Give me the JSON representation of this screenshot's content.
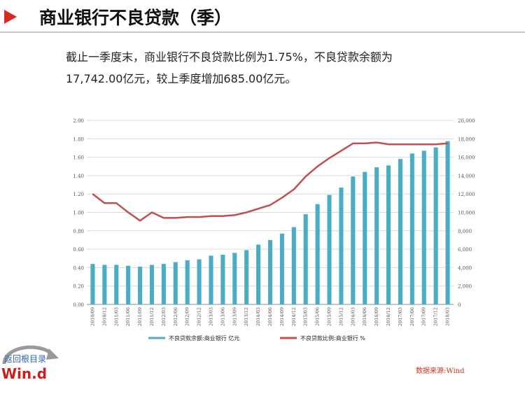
{
  "header": {
    "title": "商业银行不良贷款（季）"
  },
  "summary": {
    "line1": "截止一季度末，商业银行不良贷款比例为1.75%，不良贷款余额为",
    "line2": "17,742.00亿元，较上季度增加685.00亿元。"
  },
  "source": "数据来源:Wind",
  "nav": {
    "back_label": "返回根目录",
    "logo_text": "Win.d"
  },
  "colors": {
    "accent": "#d42a1f",
    "bar": "#4bacc6",
    "line": "#c0504d"
  },
  "chart_data": {
    "type": "bar",
    "categories": [
      "2010/09",
      "2010/12",
      "2011/03",
      "2011/06",
      "2011/09",
      "2011/12",
      "2012/03",
      "2012/06",
      "2012/09",
      "2012/12",
      "2013/03",
      "2013/06",
      "2013/09",
      "2013/12",
      "2014/03",
      "2014/06",
      "2014/09",
      "2014/12",
      "2015/03",
      "2015/06",
      "2015/09",
      "2015/12",
      "2016/03",
      "2016/06",
      "2016/09",
      "2016/12",
      "2017/03",
      "2017/06",
      "2017/09",
      "2017/12",
      "2018/03"
    ],
    "series": [
      {
        "name": "不良贷款余额:商业银行 亿元",
        "type": "bar",
        "axis": "right",
        "values": [
          4400,
          4300,
          4300,
          4200,
          4100,
          4300,
          4400,
          4600,
          4800,
          4900,
          5300,
          5400,
          5600,
          5900,
          6500,
          7000,
          7700,
          8400,
          9800,
          10900,
          11900,
          12700,
          13900,
          14400,
          14900,
          15100,
          15800,
          16400,
          16700,
          17057,
          17742
        ]
      },
      {
        "name": "不良贷款比例:商业银行 %",
        "type": "line",
        "axis": "left",
        "values": [
          1.2,
          1.1,
          1.1,
          1.0,
          0.91,
          1.0,
          0.94,
          0.94,
          0.95,
          0.95,
          0.96,
          0.96,
          0.97,
          1.0,
          1.04,
          1.08,
          1.16,
          1.25,
          1.39,
          1.5,
          1.59,
          1.67,
          1.75,
          1.75,
          1.76,
          1.74,
          1.74,
          1.74,
          1.74,
          1.74,
          1.75
        ]
      }
    ],
    "y_left": {
      "ylim": [
        0,
        2
      ],
      "ticks": [
        "2.00",
        "1.80",
        "1.60",
        "1.40",
        "1.20",
        "1.00",
        "0.80",
        "0.60",
        "0.40",
        "0.20",
        "0.00"
      ]
    },
    "y_right": {
      "ylim": [
        0,
        20000
      ],
      "ticks": [
        "20,000",
        "18,000",
        "16,000",
        "14,000",
        "12,000",
        "10,000",
        "8,000",
        "6,000",
        "4,000",
        "2,000",
        "0"
      ]
    },
    "grid": true,
    "legend_position": "bottom"
  }
}
